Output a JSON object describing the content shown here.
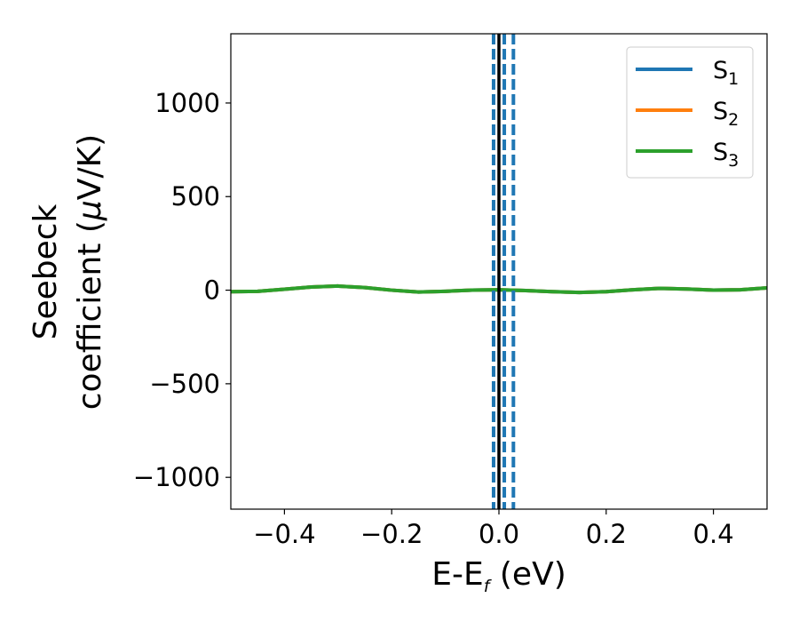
{
  "chart_data": {
    "type": "line",
    "title": "",
    "xlabel": {
      "main": "E-E",
      "sub": "f",
      "unit": " (eV)"
    },
    "ylabel": {
      "line1": "Seebeck",
      "line2_prefix": "coefficient  (",
      "mu": "μ",
      "line2_suffix": "V/K)"
    },
    "xlim": [
      -0.5,
      0.5
    ],
    "ylim": [
      -1170,
      1370
    ],
    "xticks": [
      -0.4,
      -0.2,
      0.0,
      0.2,
      0.4
    ],
    "xtick_labels": [
      "−0.4",
      "−0.2",
      "0.0",
      "0.2",
      "0.4"
    ],
    "yticks": [
      -1000,
      -500,
      0,
      500,
      1000
    ],
    "ytick_labels": [
      "−1000",
      "−500",
      "0",
      "500",
      "1000"
    ],
    "grid": false,
    "legend_position": "top-right",
    "series": [
      {
        "name": "S",
        "subscript": "1",
        "color": "#1f77b4",
        "x": [
          -0.5,
          -0.45,
          -0.4,
          -0.35,
          -0.3,
          -0.25,
          -0.2,
          -0.15,
          -0.1,
          -0.05,
          0.0,
          0.05,
          0.1,
          0.15,
          0.2,
          0.25,
          0.3,
          0.35,
          0.4,
          0.45,
          0.5
        ],
        "y": [
          -8,
          -6,
          5,
          17,
          22,
          14,
          0,
          -10,
          -6,
          0,
          2,
          -2,
          -8,
          -12,
          -8,
          2,
          10,
          6,
          0,
          2,
          12
        ]
      },
      {
        "name": "S",
        "subscript": "2",
        "color": "#ff7f0e",
        "x": [
          -0.5,
          -0.45,
          -0.4,
          -0.35,
          -0.3,
          -0.25,
          -0.2,
          -0.15,
          -0.1,
          -0.05,
          0.0,
          0.05,
          0.1,
          0.15,
          0.2,
          0.25,
          0.3,
          0.35,
          0.4,
          0.45,
          0.5
        ],
        "y": [
          -8,
          -6,
          5,
          17,
          22,
          14,
          0,
          -10,
          -6,
          0,
          2,
          -2,
          -8,
          -12,
          -8,
          2,
          10,
          6,
          0,
          2,
          12
        ]
      },
      {
        "name": "S",
        "subscript": "3",
        "color": "#2ca02c",
        "x": [
          -0.5,
          -0.45,
          -0.4,
          -0.35,
          -0.3,
          -0.25,
          -0.2,
          -0.15,
          -0.1,
          -0.05,
          0.0,
          0.05,
          0.1,
          0.15,
          0.2,
          0.25,
          0.3,
          0.35,
          0.4,
          0.45,
          0.5
        ],
        "y": [
          -8,
          -6,
          5,
          17,
          22,
          14,
          0,
          -10,
          -6,
          0,
          2,
          -2,
          -8,
          -12,
          -8,
          2,
          10,
          6,
          0,
          2,
          12
        ]
      }
    ],
    "vertical_lines": [
      {
        "x": 0.0,
        "style": "solid",
        "color": "#000000"
      },
      {
        "x": -0.01,
        "style": "dashed",
        "color": "#1f77b4"
      },
      {
        "x": 0.01,
        "style": "dashed",
        "color": "#1f77b4"
      },
      {
        "x": 0.027,
        "style": "dashed",
        "color": "#1f77b4"
      }
    ]
  }
}
